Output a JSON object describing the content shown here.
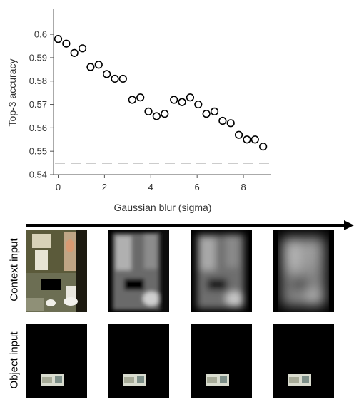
{
  "chart_data": {
    "type": "scatter",
    "xlabel": "Gaussian blur (sigma)",
    "ylabel": "Top-3 accuracy",
    "xlim": [
      -0.2,
      9.2
    ],
    "ylim": [
      0.54,
      0.611
    ],
    "xticks": [
      0,
      2,
      4,
      6,
      8
    ],
    "yticks": [
      0.54,
      0.55,
      0.56,
      0.57,
      0.58,
      0.59,
      0.6
    ],
    "ytick_labels": [
      "0.54",
      "0.55",
      "0.56",
      "0.57",
      "0.58",
      "0.59",
      "0.6"
    ],
    "baseline": 0.545,
    "marker": "open-circle",
    "grid": false,
    "x": [
      0,
      0.35,
      0.7,
      1.05,
      1.4,
      1.75,
      2.1,
      2.45,
      2.8,
      3.2,
      3.55,
      3.9,
      4.25,
      4.6,
      5.0,
      5.35,
      5.7,
      6.05,
      6.4,
      6.75,
      7.1,
      7.45,
      7.8,
      8.15,
      8.5,
      8.85
    ],
    "y": [
      0.598,
      0.596,
      0.592,
      0.594,
      0.586,
      0.587,
      0.583,
      0.581,
      0.581,
      0.572,
      0.573,
      0.567,
      0.565,
      0.566,
      0.572,
      0.571,
      0.573,
      0.57,
      0.566,
      0.567,
      0.563,
      0.562,
      0.557,
      0.555,
      0.555,
      0.552
    ]
  },
  "panels": {
    "row_labels": [
      "Context input",
      "Object input"
    ]
  },
  "colors": {
    "axis": "#555555",
    "marker": "#000000",
    "baseline": "#333333"
  }
}
